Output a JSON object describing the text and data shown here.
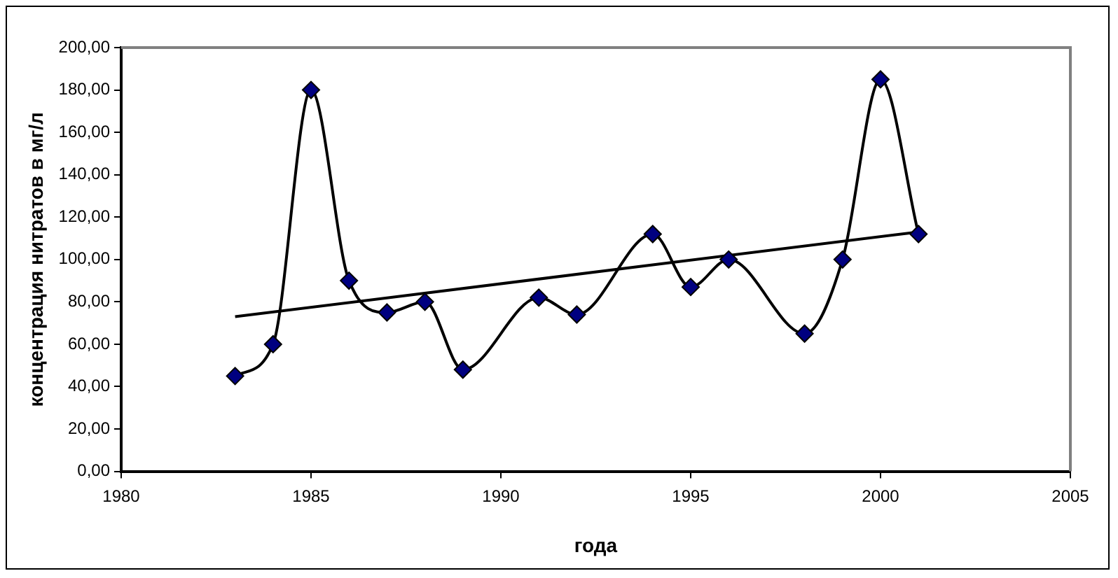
{
  "chart_data": {
    "type": "line",
    "xlabel": "года",
    "ylabel": "концентрация нитратов в мг/л",
    "legend": false,
    "grid": false,
    "xlim": [
      1980,
      2005
    ],
    "xticks": [
      1980,
      1985,
      1990,
      1995,
      2000,
      2005
    ],
    "ylim": [
      0,
      200
    ],
    "yticks": [
      {
        "value": 0,
        "label": "0,00"
      },
      {
        "value": 20,
        "label": "20,00"
      },
      {
        "value": 40,
        "label": "40,00"
      },
      {
        "value": 60,
        "label": "60,00"
      },
      {
        "value": 80,
        "label": "80,00"
      },
      {
        "value": 100,
        "label": "100,00"
      },
      {
        "value": 120,
        "label": "120,00"
      },
      {
        "value": 140,
        "label": "140,00"
      },
      {
        "value": 160,
        "label": "160,00"
      },
      {
        "value": 180,
        "label": "180,00"
      },
      {
        "value": 200,
        "label": "200,00"
      }
    ],
    "series": [
      {
        "color": "#000080",
        "marker": "diamond",
        "x": [
          1983,
          1984,
          1985,
          1986,
          1987,
          1988,
          1989,
          1991,
          1992,
          1994,
          1995,
          1996,
          1998,
          1999,
          2000,
          2001
        ],
        "values": [
          45,
          60,
          180,
          90,
          75,
          80,
          48,
          82,
          74,
          112,
          87,
          100,
          65,
          100,
          185,
          112
        ]
      },
      {
        "color": "#000000",
        "marker": "none",
        "x": [
          1983,
          2001
        ],
        "values": [
          73,
          113
        ]
      }
    ]
  }
}
